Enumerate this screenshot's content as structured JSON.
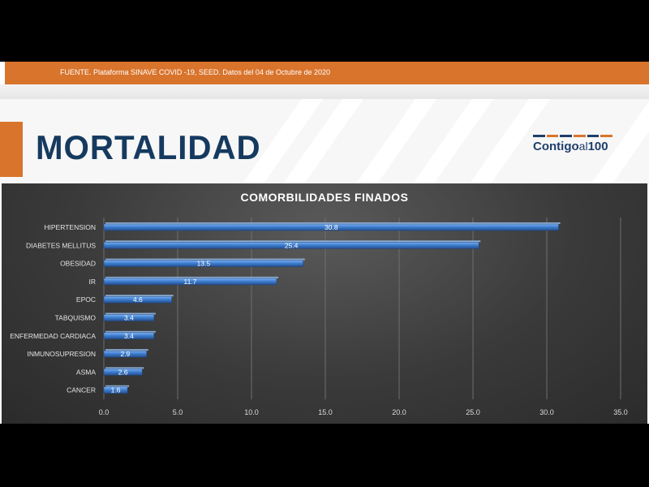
{
  "source_text": "FUENTE. Plataforma SINAVE COVID -19, SEED. Datos del 04 de Octubre de 2020",
  "main_title": "MORTALIDAD",
  "logo": {
    "text_bold": "Contigo",
    "text_light": "al",
    "text_num": "100",
    "stripe_colors": [
      "#1f3e6b",
      "#d9742c",
      "#1f3e6b",
      "#d9742c",
      "#1f3e6b",
      "#d9742c"
    ]
  },
  "colors": {
    "accent": "#d9742c",
    "title": "#163a5f",
    "bar": "#3f7fd1"
  },
  "chart_data": {
    "type": "bar",
    "orientation": "horizontal",
    "title": "COMORBILIDADES FINADOS",
    "categories": [
      "HIPERTENSION",
      "DIABETES MELLITUS",
      "OBESIDAD",
      "IR",
      "EPOC",
      "TABQUISMO",
      "ENFERMEDAD CARDIACA",
      "INMUNOSUPRESION",
      "ASMA",
      "CANCER"
    ],
    "values": [
      30.8,
      25.4,
      13.5,
      11.7,
      4.6,
      3.4,
      3.4,
      2.9,
      2.6,
      1.6
    ],
    "value_labels": [
      "30.8",
      "25.4",
      "13.5",
      "11.7",
      "4.6",
      "3.4",
      "3.4",
      "2.9",
      "2.6",
      "1.6"
    ],
    "xlim": [
      0,
      35
    ],
    "x_ticks": [
      "0.0",
      "5.0",
      "10.0",
      "15.0",
      "20.0",
      "25.0",
      "30.0",
      "35.0"
    ],
    "grid": true,
    "legend": "none"
  }
}
